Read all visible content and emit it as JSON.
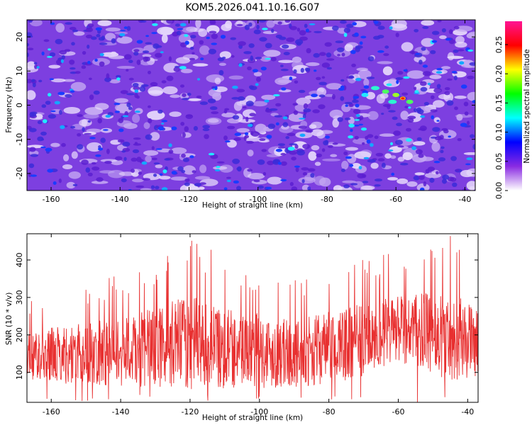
{
  "title": "KOM5.2026.041.10.16.G07",
  "chart_data": [
    {
      "type": "heatmap",
      "xlabel": "Height of straight line (km)",
      "ylabel": "Frequency (Hz)",
      "xlim": [
        -167,
        -37
      ],
      "ylim": [
        -25,
        25
      ],
      "xticks": [
        -160,
        -140,
        -120,
        -100,
        -80,
        -60,
        -40
      ],
      "yticks": [
        -20,
        -10,
        0,
        10,
        20
      ],
      "colorbar": {
        "label": "Normalized spectral amplitude",
        "range": [
          0,
          0.29
        ],
        "ticks": [
          0.0,
          0.05,
          0.1,
          0.15,
          0.2,
          0.25
        ],
        "colormap": [
          "#ffffff",
          "#8a2be2",
          "#0000ff",
          "#00ffff",
          "#00ff00",
          "#ffff00",
          "#ff0000",
          "#ff1493"
        ]
      },
      "peak": {
        "x": -58,
        "y": 2,
        "value": 0.29
      }
    },
    {
      "type": "line",
      "xlabel": "Height of straight line (km)",
      "ylabel": "SNR (10 * v/v)",
      "xlim": [
        -167,
        -37
      ],
      "ylim": [
        20,
        470
      ],
      "xticks": [
        -160,
        -140,
        -120,
        -100,
        -80,
        -60,
        -40
      ],
      "yticks": [
        100,
        200,
        300,
        400
      ],
      "color": "#e83030",
      "envelope": [
        {
          "x": -167,
          "mean": 140,
          "max": 290
        },
        {
          "x": -150,
          "mean": 140,
          "max": 340
        },
        {
          "x": -135,
          "mean": 150,
          "max": 380
        },
        {
          "x": -120,
          "mean": 170,
          "max": 470
        },
        {
          "x": -105,
          "mean": 150,
          "max": 400
        },
        {
          "x": -90,
          "mean": 140,
          "max": 350
        },
        {
          "x": -75,
          "mean": 165,
          "max": 400
        },
        {
          "x": -60,
          "mean": 205,
          "max": 420
        },
        {
          "x": -45,
          "mean": 185,
          "max": 470
        },
        {
          "x": -37,
          "mean": 170,
          "max": 380
        }
      ]
    }
  ]
}
